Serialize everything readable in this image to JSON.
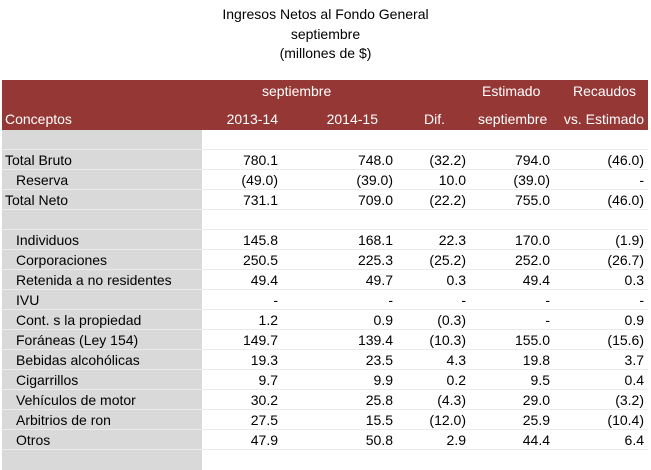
{
  "title": {
    "line1": "Ingresos Netos al Fondo General",
    "line2": "septiembre",
    "line3": "(millones de $)"
  },
  "header": {
    "group_sep": "septiembre",
    "estimado": "Estimado",
    "recaudos": "Recaudos",
    "conceptos": "Conceptos",
    "col_2013": "2013-14",
    "col_2014": "2014-15",
    "col_dif": "Dif.",
    "col_est": "septiembre",
    "col_vs": "vs. Estimado"
  },
  "colors": {
    "header_bg": "#953735",
    "label_col_bg": "#d9d9d9"
  },
  "rows": [
    {
      "label": "",
      "a": "",
      "b": "",
      "c": "",
      "d": "",
      "e": "",
      "indent": false
    },
    {
      "label": "Total Bruto",
      "a": "780.1",
      "b": "748.0",
      "c": "(32.2)",
      "d": "794.0",
      "e": "(46.0)",
      "indent": false
    },
    {
      "label": "Reserva",
      "a": "(49.0)",
      "b": "(39.0)",
      "c": "10.0",
      "d": "(39.0)",
      "e": "-",
      "indent": true
    },
    {
      "label": "Total Neto",
      "a": "731.1",
      "b": "709.0",
      "c": "(22.2)",
      "d": "755.0",
      "e": "(46.0)",
      "indent": false
    },
    {
      "label": "",
      "a": "",
      "b": "",
      "c": "",
      "d": "",
      "e": "",
      "indent": false
    },
    {
      "label": "Individuos",
      "a": "145.8",
      "b": "168.1",
      "c": "22.3",
      "d": "170.0",
      "e": "(1.9)",
      "indent": true
    },
    {
      "label": "Corporaciones",
      "a": "250.5",
      "b": "225.3",
      "c": "(25.2)",
      "d": "252.0",
      "e": "(26.7)",
      "indent": true
    },
    {
      "label": "Retenida a no residentes",
      "a": "49.4",
      "b": "49.7",
      "c": "0.3",
      "d": "49.4",
      "e": "0.3",
      "indent": true
    },
    {
      "label": "IVU",
      "a": "-",
      "b": "-",
      "c": "-",
      "d": "-",
      "e": "-",
      "indent": true
    },
    {
      "label": "Cont. s la propiedad",
      "a": "1.2",
      "b": "0.9",
      "c": "(0.3)",
      "d": "-",
      "e": "0.9",
      "indent": true
    },
    {
      "label": "Foráneas (Ley 154)",
      "a": "149.7",
      "b": "139.4",
      "c": "(10.3)",
      "d": "155.0",
      "e": "(15.6)",
      "indent": true
    },
    {
      "label": "Bebidas alcohólicas",
      "a": "19.3",
      "b": "23.5",
      "c": "4.3",
      "d": "19.8",
      "e": "3.7",
      "indent": true
    },
    {
      "label": "Cigarrillos",
      "a": "9.7",
      "b": "9.9",
      "c": "0.2",
      "d": "9.5",
      "e": "0.4",
      "indent": true
    },
    {
      "label": "Vehículos de motor",
      "a": "30.2",
      "b": "25.8",
      "c": "(4.3)",
      "d": "29.0",
      "e": "(3.2)",
      "indent": true
    },
    {
      "label": "Arbitrios de ron",
      "a": "27.5",
      "b": "15.5",
      "c": "(12.0)",
      "d": "25.9",
      "e": "(10.4)",
      "indent": true
    },
    {
      "label": "Otros",
      "a": "47.9",
      "b": "50.8",
      "c": "2.9",
      "d": "44.4",
      "e": "6.4",
      "indent": true
    }
  ]
}
